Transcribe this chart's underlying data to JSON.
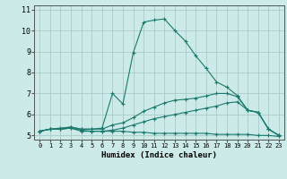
{
  "xlabel": "Humidex (Indice chaleur)",
  "background_color": "#cceae7",
  "grid_color": "#aaccca",
  "line_color": "#1a7a6e",
  "xlim": [
    -0.5,
    23.5
  ],
  "ylim": [
    4.8,
    11.2
  ],
  "xticks": [
    0,
    1,
    2,
    3,
    4,
    5,
    6,
    7,
    8,
    9,
    10,
    11,
    12,
    13,
    14,
    15,
    16,
    17,
    18,
    19,
    20,
    21,
    22,
    23
  ],
  "yticks": [
    5,
    6,
    7,
    8,
    9,
    10,
    11
  ],
  "curves": [
    {
      "x": [
        0,
        1,
        2,
        3,
        4,
        5,
        6,
        7,
        8,
        9,
        10,
        11,
        12,
        13,
        14,
        15,
        16,
        17,
        18,
        19,
        20,
        21,
        22,
        23
      ],
      "y": [
        5.2,
        5.3,
        5.3,
        5.35,
        5.2,
        5.2,
        5.2,
        5.2,
        5.2,
        5.15,
        5.15,
        5.1,
        5.1,
        5.1,
        5.1,
        5.1,
        5.1,
        5.05,
        5.05,
        5.05,
        5.05,
        5.0,
        5.0,
        4.95
      ]
    },
    {
      "x": [
        0,
        1,
        2,
        3,
        4,
        5,
        6,
        7,
        8,
        9,
        10,
        11,
        12,
        13,
        14,
        15,
        16,
        17,
        18,
        19,
        20,
        21,
        22,
        23
      ],
      "y": [
        5.2,
        5.3,
        5.3,
        5.35,
        5.25,
        5.2,
        5.2,
        5.25,
        5.35,
        5.5,
        5.65,
        5.8,
        5.9,
        6.0,
        6.1,
        6.2,
        6.3,
        6.4,
        6.55,
        6.6,
        6.2,
        6.1,
        5.3,
        5.0
      ]
    },
    {
      "x": [
        0,
        1,
        2,
        3,
        4,
        5,
        6,
        7,
        8,
        9,
        10,
        11,
        12,
        13,
        14,
        15,
        16,
        17,
        18,
        19,
        20,
        21,
        22,
        23
      ],
      "y": [
        5.2,
        5.3,
        5.3,
        5.4,
        5.3,
        5.3,
        5.3,
        5.5,
        5.6,
        5.85,
        6.15,
        6.35,
        6.55,
        6.68,
        6.72,
        6.78,
        6.88,
        7.0,
        7.0,
        6.85,
        6.2,
        6.1,
        5.3,
        5.0
      ]
    },
    {
      "x": [
        0,
        1,
        2,
        3,
        4,
        5,
        6,
        7,
        8,
        9,
        10,
        11,
        12,
        13,
        14,
        15,
        16,
        17,
        18,
        19,
        20,
        21,
        22,
        23
      ],
      "y": [
        5.2,
        5.3,
        5.35,
        5.4,
        5.3,
        5.3,
        5.35,
        7.0,
        6.5,
        8.95,
        10.4,
        10.5,
        10.55,
        10.0,
        9.5,
        8.8,
        8.2,
        7.55,
        7.3,
        6.9,
        6.2,
        6.1,
        5.3,
        5.0
      ]
    }
  ]
}
